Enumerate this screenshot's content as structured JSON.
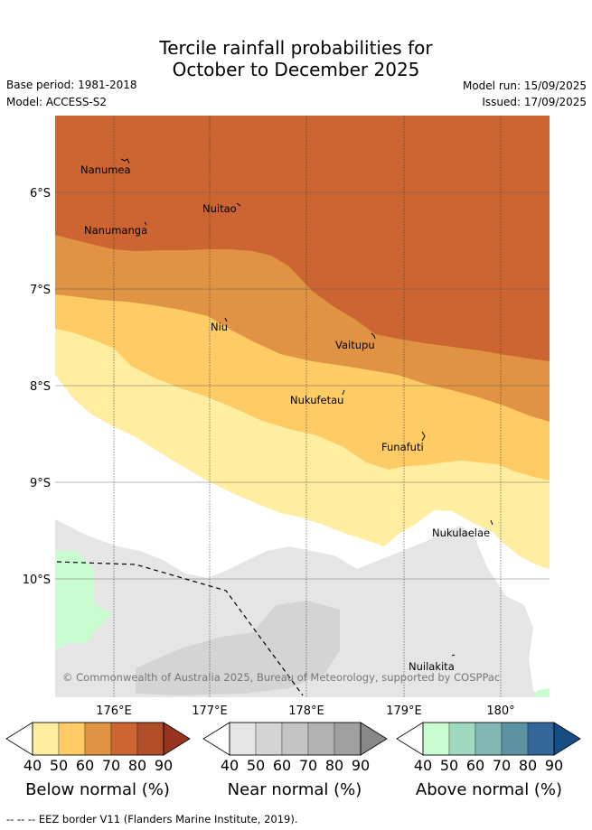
{
  "header": {
    "title_line1": "Tercile rainfall probabilities for",
    "title_line2": "October to December 2025",
    "base_period": "Base period: 1981-2018",
    "model": "Model: ACCESS-S2",
    "model_run": "Model run: 15/09/2025",
    "issued": "Issued: 17/09/2025"
  },
  "map": {
    "lat_labels": [
      "6°S",
      "7°S",
      "8°S",
      "9°S",
      "10°S"
    ],
    "lon_labels": [
      "176°E",
      "177°E",
      "178°E",
      "179°E",
      "180°"
    ],
    "places": [
      "Nanumea",
      "Nuitao",
      "Nanumanga",
      "Niu",
      "Vaitupu",
      "Nukufetau",
      "Funafuti",
      "Nukulaelae",
      "Nuilakita"
    ],
    "copyright": "© Commonwealth of Australia 2025, Bureau of Meteorology, supported by COSPPac"
  },
  "legends": {
    "ticks": [
      "40",
      "50",
      "60",
      "70",
      "80",
      "90"
    ],
    "below": {
      "label": "Below normal (%)",
      "colors": [
        "#ffeda0",
        "#fecb65",
        "#e19344",
        "#cc6531",
        "#b04e2a",
        "#973420"
      ]
    },
    "near": {
      "label": "Near normal (%)",
      "colors": [
        "#e5e5e5",
        "#d4d4d4",
        "#c4c4c4",
        "#b2b2b2",
        "#a0a0a0",
        "#888888"
      ]
    },
    "above": {
      "label": "Above normal (%)",
      "colors": [
        "#c9fcce",
        "#a1d9c0",
        "#82b7b3",
        "#5b93a2",
        "#33679a",
        "#164d85"
      ]
    }
  },
  "footer": {
    "eez_note": "--  --  -- EEZ border V11 (Flanders Marine Institute, 2019)."
  }
}
